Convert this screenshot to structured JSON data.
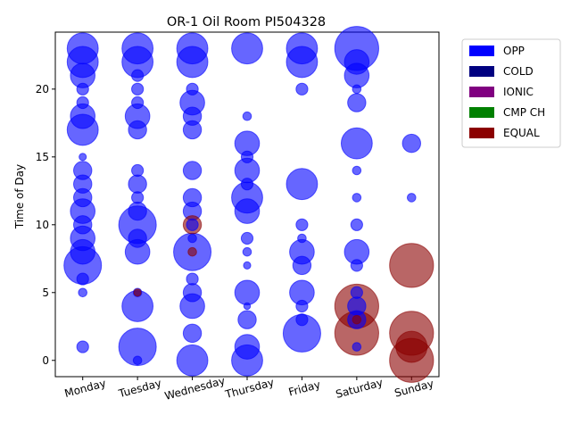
{
  "chart_data": {
    "type": "scatter",
    "title": "OR-1 Oil Room PI504328",
    "xlabel": "",
    "ylabel": "Time of Day",
    "categories": [
      "Monday",
      "Tuesday",
      "Wednesday",
      "Thursday",
      "Friday",
      "Saturday",
      "Sunday"
    ],
    "ylim": [
      -1.2,
      24.2
    ],
    "yticks": [
      "0",
      "5",
      "10",
      "15",
      "20"
    ],
    "ytick_values": [
      0,
      5,
      10,
      15,
      20
    ],
    "grid": false,
    "legend_position": "outside-top-right",
    "legend": [
      {
        "name": "OPP",
        "color": "#0000ff"
      },
      {
        "name": "COLD",
        "color": "#000080"
      },
      {
        "name": "IONIC",
        "color": "#800080"
      },
      {
        "name": "CMP CH",
        "color": "#008000"
      },
      {
        "name": "EQUAL",
        "color": "#8b0000"
      }
    ],
    "series": [
      {
        "name": "OPP",
        "color": "#0000ff",
        "points": [
          {
            "day": 0,
            "hour": 23,
            "size": 4
          },
          {
            "day": 0,
            "hour": 22,
            "size": 4
          },
          {
            "day": 0,
            "hour": 21,
            "size": 3
          },
          {
            "day": 0,
            "hour": 20,
            "size": 1
          },
          {
            "day": 0,
            "hour": 19,
            "size": 1
          },
          {
            "day": 0,
            "hour": 18,
            "size": 3
          },
          {
            "day": 0,
            "hour": 17,
            "size": 4
          },
          {
            "day": 0,
            "hour": 15,
            "size": 0.3
          },
          {
            "day": 0,
            "hour": 14,
            "size": 2
          },
          {
            "day": 0,
            "hour": 13,
            "size": 2
          },
          {
            "day": 0,
            "hour": 12,
            "size": 2
          },
          {
            "day": 0,
            "hour": 11,
            "size": 3
          },
          {
            "day": 0,
            "hour": 10,
            "size": 2
          },
          {
            "day": 0,
            "hour": 9,
            "size": 3
          },
          {
            "day": 0,
            "hour": 8,
            "size": 3
          },
          {
            "day": 0,
            "hour": 7,
            "size": 5
          },
          {
            "day": 0,
            "hour": 6,
            "size": 1
          },
          {
            "day": 0,
            "hour": 5,
            "size": 0.5
          },
          {
            "day": 0,
            "hour": 1,
            "size": 1
          },
          {
            "day": 1,
            "hour": 23,
            "size": 4
          },
          {
            "day": 1,
            "hour": 22,
            "size": 4
          },
          {
            "day": 1,
            "hour": 21,
            "size": 1
          },
          {
            "day": 1,
            "hour": 20,
            "size": 1
          },
          {
            "day": 1,
            "hour": 19,
            "size": 1
          },
          {
            "day": 1,
            "hour": 18,
            "size": 3
          },
          {
            "day": 1,
            "hour": 17,
            "size": 2
          },
          {
            "day": 1,
            "hour": 14,
            "size": 1
          },
          {
            "day": 1,
            "hour": 13,
            "size": 2
          },
          {
            "day": 1,
            "hour": 12,
            "size": 1
          },
          {
            "day": 1,
            "hour": 11,
            "size": 2
          },
          {
            "day": 1,
            "hour": 10,
            "size": 5
          },
          {
            "day": 1,
            "hour": 9,
            "size": 2
          },
          {
            "day": 1,
            "hour": 8,
            "size": 3
          },
          {
            "day": 1,
            "hour": 5,
            "size": 0.5
          },
          {
            "day": 1,
            "hour": 4,
            "size": 4
          },
          {
            "day": 1,
            "hour": 1,
            "size": 5
          },
          {
            "day": 1,
            "hour": 0,
            "size": 0.5
          },
          {
            "day": 2,
            "hour": 23,
            "size": 4
          },
          {
            "day": 2,
            "hour": 22,
            "size": 4
          },
          {
            "day": 2,
            "hour": 20,
            "size": 1
          },
          {
            "day": 2,
            "hour": 19,
            "size": 3
          },
          {
            "day": 2,
            "hour": 18,
            "size": 2
          },
          {
            "day": 2,
            "hour": 17,
            "size": 2
          },
          {
            "day": 2,
            "hour": 14,
            "size": 2
          },
          {
            "day": 2,
            "hour": 12,
            "size": 2
          },
          {
            "day": 2,
            "hour": 11,
            "size": 2
          },
          {
            "day": 2,
            "hour": 10,
            "size": 1
          },
          {
            "day": 2,
            "hour": 9,
            "size": 0.5
          },
          {
            "day": 2,
            "hour": 8,
            "size": 5
          },
          {
            "day": 2,
            "hour": 6,
            "size": 1
          },
          {
            "day": 2,
            "hour": 5,
            "size": 2
          },
          {
            "day": 2,
            "hour": 4,
            "size": 3
          },
          {
            "day": 2,
            "hour": 2,
            "size": 2
          },
          {
            "day": 2,
            "hour": 0,
            "size": 4
          },
          {
            "day": 3,
            "hour": 23,
            "size": 4
          },
          {
            "day": 3,
            "hour": 18,
            "size": 0.5
          },
          {
            "day": 3,
            "hour": 16,
            "size": 3
          },
          {
            "day": 3,
            "hour": 15,
            "size": 1
          },
          {
            "day": 3,
            "hour": 14,
            "size": 3
          },
          {
            "day": 3,
            "hour": 13,
            "size": 1
          },
          {
            "day": 3,
            "hour": 12,
            "size": 4
          },
          {
            "day": 3,
            "hour": 11,
            "size": 3
          },
          {
            "day": 3,
            "hour": 9,
            "size": 1
          },
          {
            "day": 3,
            "hour": 8,
            "size": 0.5
          },
          {
            "day": 3,
            "hour": 7,
            "size": 0.3
          },
          {
            "day": 3,
            "hour": 5,
            "size": 3
          },
          {
            "day": 3,
            "hour": 4,
            "size": 0.2
          },
          {
            "day": 3,
            "hour": 3,
            "size": 2
          },
          {
            "day": 3,
            "hour": 1,
            "size": 3
          },
          {
            "day": 3,
            "hour": 0,
            "size": 4
          },
          {
            "day": 4,
            "hour": 23,
            "size": 4
          },
          {
            "day": 4,
            "hour": 22,
            "size": 4
          },
          {
            "day": 4,
            "hour": 20,
            "size": 1
          },
          {
            "day": 4,
            "hour": 13,
            "size": 4
          },
          {
            "day": 4,
            "hour": 10,
            "size": 1
          },
          {
            "day": 4,
            "hour": 9,
            "size": 0.5
          },
          {
            "day": 4,
            "hour": 8,
            "size": 3
          },
          {
            "day": 4,
            "hour": 7,
            "size": 2
          },
          {
            "day": 4,
            "hour": 5,
            "size": 3
          },
          {
            "day": 4,
            "hour": 4,
            "size": 1
          },
          {
            "day": 4,
            "hour": 3,
            "size": 1
          },
          {
            "day": 4,
            "hour": 2,
            "size": 5
          },
          {
            "day": 5,
            "hour": 23,
            "size": 6
          },
          {
            "day": 5,
            "hour": 22,
            "size": 3
          },
          {
            "day": 5,
            "hour": 21,
            "size": 3
          },
          {
            "day": 5,
            "hour": 20,
            "size": 0.5
          },
          {
            "day": 5,
            "hour": 19,
            "size": 2
          },
          {
            "day": 5,
            "hour": 16,
            "size": 4
          },
          {
            "day": 5,
            "hour": 14,
            "size": 0.5
          },
          {
            "day": 5,
            "hour": 12,
            "size": 0.5
          },
          {
            "day": 5,
            "hour": 10,
            "size": 1
          },
          {
            "day": 5,
            "hour": 8,
            "size": 3
          },
          {
            "day": 5,
            "hour": 7,
            "size": 1
          },
          {
            "day": 5,
            "hour": 5,
            "size": 1
          },
          {
            "day": 5,
            "hour": 4,
            "size": 2
          },
          {
            "day": 5,
            "hour": 3,
            "size": 2
          },
          {
            "day": 5,
            "hour": 1,
            "size": 0.5
          },
          {
            "day": 6,
            "hour": 16,
            "size": 2
          },
          {
            "day": 6,
            "hour": 12,
            "size": 0.5
          }
        ]
      },
      {
        "name": "EQUAL",
        "color": "#8b0000",
        "points": [
          {
            "day": 1,
            "hour": 5,
            "size": 0.3
          },
          {
            "day": 2,
            "hour": 10,
            "size": 2
          },
          {
            "day": 2,
            "hour": 8,
            "size": 0.5
          },
          {
            "day": 5,
            "hour": 4,
            "size": 6
          },
          {
            "day": 5,
            "hour": 2,
            "size": 6
          },
          {
            "day": 5,
            "hour": 3,
            "size": 0.5
          },
          {
            "day": 6,
            "hour": 7,
            "size": 6
          },
          {
            "day": 6,
            "hour": 2,
            "size": 6
          },
          {
            "day": 6,
            "hour": 1,
            "size": 4
          },
          {
            "day": 6,
            "hour": 0,
            "size": 6
          }
        ]
      }
    ]
  }
}
